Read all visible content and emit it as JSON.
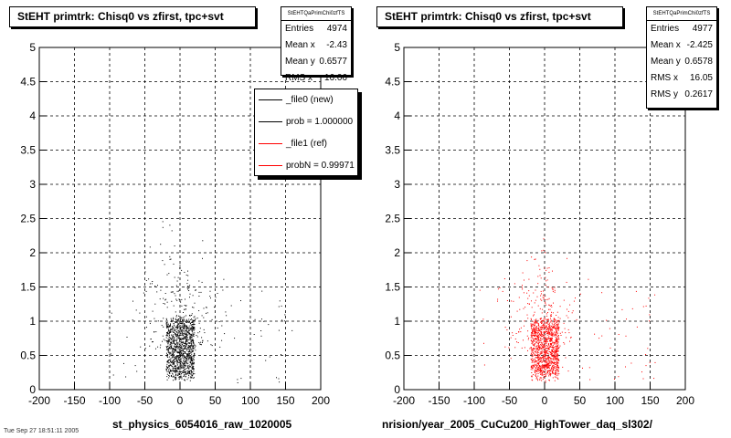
{
  "panels": [
    {
      "title": "StEHT primtrk: Chisq0 vs zfirst, tpc+svt",
      "stats": {
        "name": "StEHTQaPrimChi0zfTS",
        "rows": [
          {
            "label": "Entries",
            "value": "4974"
          },
          {
            "label": "Mean x",
            "value": "-2.43"
          },
          {
            "label": "Mean y",
            "value": "0.6577"
          },
          {
            "label": "RMS x",
            "value": "16.06"
          }
        ]
      },
      "legend": [
        {
          "label": "_file0 (new)",
          "color": "#000000"
        },
        {
          "label": "prob = 1.000000",
          "color": "#000000"
        },
        {
          "label": "_file1 (ref)",
          "color": "#ff0000"
        },
        {
          "label": "probN = 0.99971",
          "color": "#ff0000"
        }
      ],
      "xlabel": "st_physics_6054016_raw_1020005",
      "point_color": "#000000"
    },
    {
      "title": "StEHT primtrk: Chisq0 vs zfirst, tpc+svt",
      "stats": {
        "name": "StEHTQaPrimChi0zfTS",
        "rows": [
          {
            "label": "Entries",
            "value": "4977"
          },
          {
            "label": "Mean x",
            "value": "-2.425"
          },
          {
            "label": "Mean y",
            "value": "0.6578"
          },
          {
            "label": "RMS x",
            "value": "16.05"
          },
          {
            "label": "RMS y",
            "value": "0.2617"
          }
        ]
      },
      "xlabel": "nrision/year_2005_CuCu200_HighTower_daq_sl302/",
      "point_color": "#ff0000"
    }
  ],
  "footer_text": "Tue Sep 27 18:51:11 2005",
  "chart_data": [
    {
      "type": "scatter",
      "title": "StEHT primtrk: Chisq0 vs zfirst, tpc+svt",
      "xlabel": "st_physics_6054016_raw_1020005",
      "ylabel": "",
      "xlim": [
        -200,
        200
      ],
      "ylim": [
        0,
        5
      ],
      "xticks": [
        -200,
        -150,
        -100,
        -50,
        0,
        50,
        100,
        150,
        200
      ],
      "yticks": [
        0,
        0.5,
        1,
        1.5,
        2,
        2.5,
        3,
        3.5,
        4,
        4.5,
        5
      ],
      "grid": true,
      "entries": 4974,
      "mean_x": -2.43,
      "mean_y": 0.6577,
      "rms_x": 16.06,
      "core_region": {
        "x": [
          -20,
          20
        ],
        "y": [
          0.2,
          1.0
        ]
      },
      "series": [
        {
          "name": "_file0 (new)",
          "color": "#000000"
        }
      ]
    },
    {
      "type": "scatter",
      "title": "StEHT primtrk: Chisq0 vs zfirst, tpc+svt",
      "xlabel": "nrision/year_2005_CuCu200_HighTower_daq_sl302/",
      "ylabel": "",
      "xlim": [
        -200,
        200
      ],
      "ylim": [
        0,
        5
      ],
      "xticks": [
        -200,
        -150,
        -100,
        -50,
        0,
        50,
        100,
        150,
        200
      ],
      "yticks": [
        0,
        0.5,
        1,
        1.5,
        2,
        2.5,
        3,
        3.5,
        4,
        4.5,
        5
      ],
      "grid": true,
      "entries": 4977,
      "mean_x": -2.425,
      "mean_y": 0.6578,
      "rms_x": 16.05,
      "rms_y": 0.2617,
      "core_region": {
        "x": [
          -20,
          20
        ],
        "y": [
          0.2,
          1.0
        ]
      },
      "series": [
        {
          "name": "_file1 (ref)",
          "color": "#ff0000"
        }
      ]
    }
  ]
}
